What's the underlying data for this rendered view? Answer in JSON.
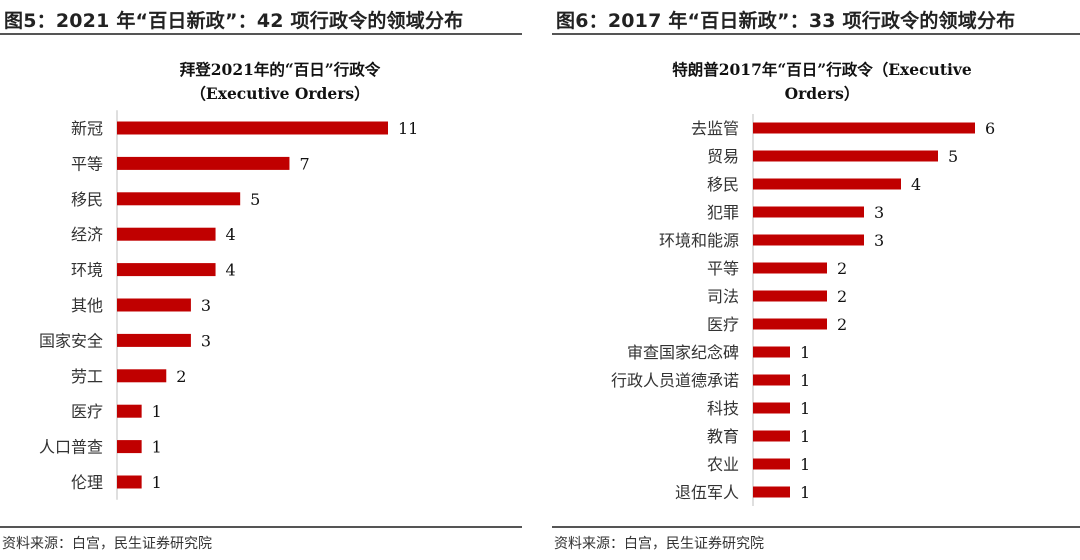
{
  "left_figure": {
    "figure_title": "图5：2021 年“百日新政”：42 项行政令的领域分布",
    "source": "资料来源：白宫，民生证券研究院"
  },
  "right_figure": {
    "figure_title": "图6：2017 年“百日新政”：33 项行政令的领域分布",
    "source": "资料来源：白宫，民生证券研究院"
  },
  "colors": {
    "bar": "#c00000",
    "rule": "#555555"
  },
  "chart_data": [
    {
      "type": "bar",
      "orientation": "horizontal",
      "title_lines": [
        "拜登2021年的“百日”行政令",
        "（Executive Orders）"
      ],
      "categories": [
        "新冠",
        "平等",
        "移民",
        "经济",
        "环境",
        "其他",
        "国家安全",
        "劳工",
        "医疗",
        "人口普查",
        "伦理"
      ],
      "values": [
        11,
        7,
        5,
        4,
        4,
        3,
        3,
        2,
        1,
        1,
        1
      ],
      "data_labels": [
        "11",
        "7",
        "5",
        "4",
        "4",
        "3",
        "3",
        "2",
        "1",
        "1",
        "1"
      ],
      "xlim": [
        0,
        11
      ],
      "grid": false,
      "legend": "none"
    },
    {
      "type": "bar",
      "orientation": "horizontal",
      "title_lines": [
        "特朗普2017年“百日”行政令（Executive",
        "Orders）"
      ],
      "categories": [
        "去监管",
        "贸易",
        "移民",
        "犯罪",
        "环境和能源",
        "平等",
        "司法",
        "医疗",
        "审查国家纪念碑",
        "行政人员道德承诺",
        "科技",
        "教育",
        "农业",
        "退伍军人"
      ],
      "values": [
        6,
        5,
        4,
        3,
        3,
        2,
        2,
        2,
        1,
        1,
        1,
        1,
        1,
        1
      ],
      "data_labels": [
        "6",
        "5",
        "4",
        "3",
        "3",
        "2",
        "2",
        "2",
        "1",
        "1",
        "1",
        "1",
        "1",
        "1"
      ],
      "xlim": [
        0,
        6
      ],
      "grid": false,
      "legend": "none"
    }
  ]
}
